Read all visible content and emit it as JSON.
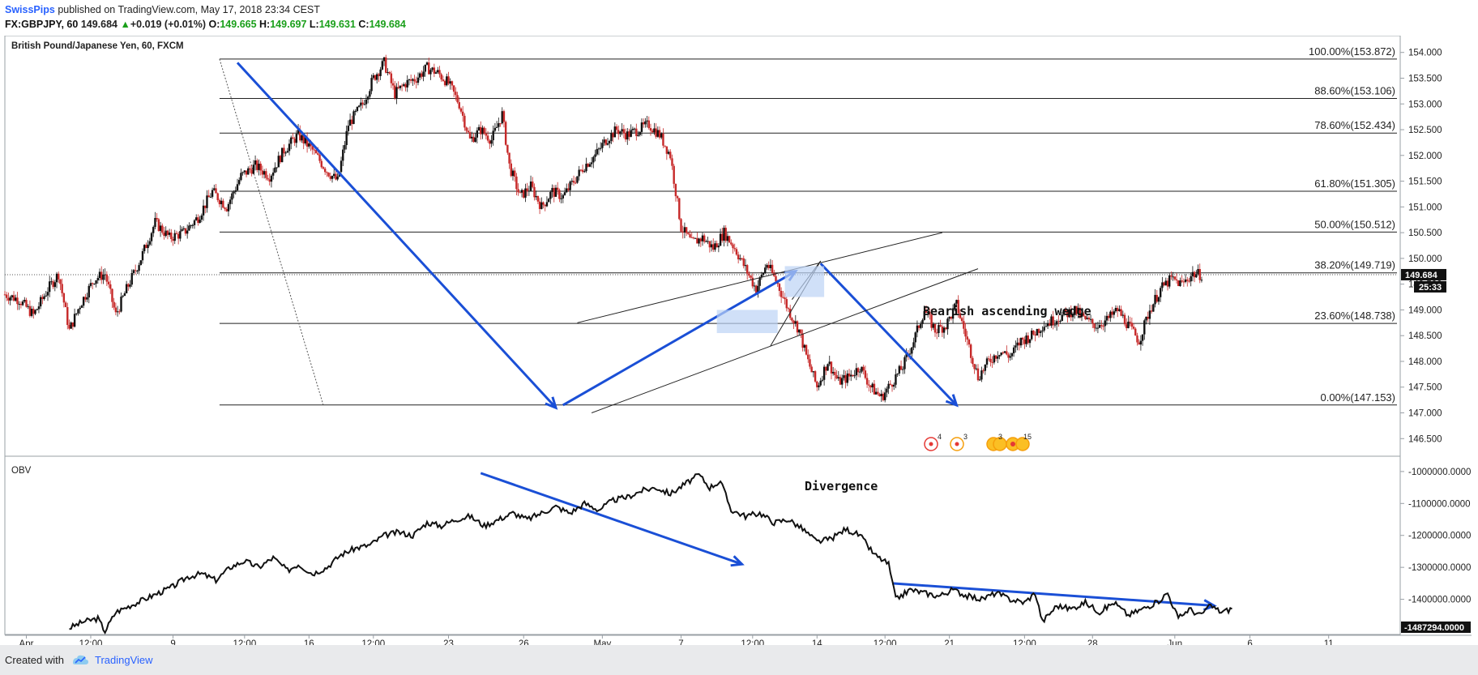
{
  "header": {
    "publisher": "SwissPips",
    "published_text": "published on TradingView.com, May 17, 2018 23:34 CEST",
    "symbol": "FX:GBPJPY, 60",
    "last": "149.684",
    "change": "+0.019 (+0.01%)",
    "o_label": "O:",
    "o_value": "149.665",
    "h_label": "H:",
    "h_value": "149.697",
    "l_label": "L:",
    "l_value": "149.631",
    "c_label": "C:",
    "c_value": "149.684"
  },
  "chart_data": [
    {
      "type": "candlestick",
      "title": "British Pound/Japanese Yen, 60, FXCM",
      "ylim": [
        146.3,
        154.2
      ],
      "y_ticks": [
        "154.000",
        "153.500",
        "153.000",
        "152.500",
        "152.000",
        "151.500",
        "151.000",
        "150.500",
        "150.000",
        "149.500",
        "149.000",
        "148.500",
        "148.000",
        "147.500",
        "147.000",
        "146.500"
      ],
      "y_tick_values": [
        154.0,
        153.5,
        153.0,
        152.5,
        152.0,
        151.5,
        151.0,
        150.5,
        150.0,
        149.5,
        149.0,
        148.5,
        148.0,
        147.5,
        147.0,
        146.5
      ],
      "last_price_label": "149.684",
      "last_price": 149.684,
      "countdown_label": "25:33",
      "fibonacci": [
        {
          "label": "100.00%(153.872)",
          "value": 153.872
        },
        {
          "label": "88.60%(153.106)",
          "value": 153.106
        },
        {
          "label": "78.60%(152.434)",
          "value": 152.434
        },
        {
          "label": "61.80%(151.305)",
          "value": 151.305
        },
        {
          "label": "50.00%(150.512)",
          "value": 150.512
        },
        {
          "label": "38.20%(149.719)",
          "value": 149.719
        },
        {
          "label": "23.60%(148.738)",
          "value": 148.738
        },
        {
          "label": "0.00%(147.153)",
          "value": 147.153
        }
      ],
      "price_path": [
        [
          0,
          149.3
        ],
        [
          4,
          149.2
        ],
        [
          8,
          148.9
        ],
        [
          12,
          149.4
        ],
        [
          15,
          149.7
        ],
        [
          18,
          148.6
        ],
        [
          21,
          149.1
        ],
        [
          25,
          149.6
        ],
        [
          28,
          149.7
        ],
        [
          31,
          148.9
        ],
        [
          34,
          149.4
        ],
        [
          38,
          150.0
        ],
        [
          42,
          150.7
        ],
        [
          46,
          150.4
        ],
        [
          50,
          150.5
        ],
        [
          54,
          150.8
        ],
        [
          58,
          151.3
        ],
        [
          62,
          151.0
        ],
        [
          66,
          151.6
        ],
        [
          70,
          151.8
        ],
        [
          74,
          151.6
        ],
        [
          78,
          152.1
        ],
        [
          82,
          152.4
        ],
        [
          86,
          152.1
        ],
        [
          90,
          151.7
        ],
        [
          93,
          151.5
        ],
        [
          96,
          152.6
        ],
        [
          100,
          153.0
        ],
        [
          103,
          153.5
        ],
        [
          106,
          153.8
        ],
        [
          109,
          153.2
        ],
        [
          112,
          153.4
        ],
        [
          115,
          153.5
        ],
        [
          118,
          153.7
        ],
        [
          121,
          153.6
        ],
        [
          124,
          153.4
        ],
        [
          127,
          153.0
        ],
        [
          130,
          152.3
        ],
        [
          133,
          152.5
        ],
        [
          136,
          152.3
        ],
        [
          139,
          152.8
        ],
        [
          141,
          151.8
        ],
        [
          144,
          151.2
        ],
        [
          147,
          151.4
        ],
        [
          150,
          151.0
        ],
        [
          153,
          151.3
        ],
        [
          156,
          151.2
        ],
        [
          159,
          151.5
        ],
        [
          162,
          151.8
        ],
        [
          165,
          152.0
        ],
        [
          168,
          152.3
        ],
        [
          171,
          152.5
        ],
        [
          174,
          152.4
        ],
        [
          177,
          152.5
        ],
        [
          180,
          152.6
        ],
        [
          183,
          152.4
        ],
        [
          186,
          152.0
        ],
        [
          189,
          150.6
        ],
        [
          192,
          150.3
        ],
        [
          195,
          150.4
        ],
        [
          198,
          150.2
        ],
        [
          201,
          150.5
        ],
        [
          204,
          150.2
        ],
        [
          207,
          149.8
        ],
        [
          210,
          149.4
        ],
        [
          213,
          149.9
        ],
        [
          216,
          149.5
        ],
        [
          219,
          149.0
        ],
        [
          222,
          148.6
        ],
        [
          224,
          148.1
        ],
        [
          227,
          147.5
        ],
        [
          230,
          148.0
        ],
        [
          233,
          147.6
        ],
        [
          236,
          147.7
        ],
        [
          239,
          147.9
        ],
        [
          242,
          147.5
        ],
        [
          245,
          147.3
        ],
        [
          248,
          147.6
        ],
        [
          251,
          147.9
        ],
        [
          254,
          148.4
        ],
        [
          257,
          149.0
        ],
        [
          260,
          148.6
        ],
        [
          263,
          148.7
        ],
        [
          266,
          149.1
        ],
        [
          269,
          148.4
        ],
        [
          272,
          147.7
        ],
        [
          275,
          148.0
        ],
        [
          278,
          148.2
        ],
        [
          281,
          148.1
        ],
        [
          284,
          148.4
        ],
        [
          287,
          148.5
        ],
        [
          290,
          148.7
        ],
        [
          293,
          148.8
        ],
        [
          296,
          148.9
        ],
        [
          299,
          149.0
        ],
        [
          302,
          148.8
        ],
        [
          305,
          148.7
        ],
        [
          308,
          148.8
        ],
        [
          311,
          149.0
        ],
        [
          314,
          148.7
        ],
        [
          317,
          148.4
        ],
        [
          320,
          149.0
        ],
        [
          323,
          149.4
        ],
        [
          326,
          149.6
        ],
        [
          329,
          149.5
        ],
        [
          332,
          149.7
        ],
        [
          335,
          149.68
        ]
      ],
      "x_ticks": [
        "Apr",
        "12:00",
        "9",
        "12:00",
        "16",
        "12:00",
        "23",
        "26",
        "May",
        "7",
        "12:00",
        "14",
        "12:00",
        "21",
        "12:00",
        "28",
        "Jun",
        "6",
        "11"
      ],
      "x_tick_index": [
        6,
        24,
        47,
        67,
        85,
        103,
        124,
        145,
        167,
        189,
        209,
        227,
        246,
        264,
        285,
        304,
        327,
        348,
        370
      ],
      "annotations": {
        "wedge_label": "Bearish ascending wedge"
      },
      "markers": [
        "4",
        "3",
        "3",
        "15"
      ]
    },
    {
      "type": "line",
      "title": "OBV",
      "ylim": [
        -1500000,
        -980000
      ],
      "y_ticks": [
        "-1000000.0000",
        "-1100000.0000",
        "-1200000.0000",
        "-1300000.0000",
        "-1400000.0000"
      ],
      "y_tick_values": [
        -1000000,
        -1100000,
        -1200000,
        -1300000,
        -1400000
      ],
      "last_value_label": "-1487294.0000",
      "last_value": -1487294,
      "series": [
        {
          "values": [
            [
              18,
              -1490000
            ],
            [
              22,
              -1470000
            ],
            [
              26,
              -1460000
            ],
            [
              28,
              -1500000
            ],
            [
              31,
              -1440000
            ],
            [
              35,
              -1420000
            ],
            [
              39,
              -1400000
            ],
            [
              43,
              -1380000
            ],
            [
              47,
              -1360000
            ],
            [
              51,
              -1330000
            ],
            [
              55,
              -1320000
            ],
            [
              59,
              -1340000
            ],
            [
              63,
              -1300000
            ],
            [
              67,
              -1280000
            ],
            [
              71,
              -1300000
            ],
            [
              75,
              -1270000
            ],
            [
              79,
              -1310000
            ],
            [
              82,
              -1290000
            ],
            [
              86,
              -1320000
            ],
            [
              90,
              -1300000
            ],
            [
              94,
              -1260000
            ],
            [
              98,
              -1240000
            ],
            [
              102,
              -1230000
            ],
            [
              106,
              -1200000
            ],
            [
              110,
              -1190000
            ],
            [
              114,
              -1200000
            ],
            [
              118,
              -1160000
            ],
            [
              122,
              -1170000
            ],
            [
              126,
              -1150000
            ],
            [
              130,
              -1140000
            ],
            [
              134,
              -1170000
            ],
            [
              138,
              -1150000
            ],
            [
              142,
              -1130000
            ],
            [
              146,
              -1150000
            ],
            [
              150,
              -1130000
            ],
            [
              154,
              -1110000
            ],
            [
              158,
              -1130000
            ],
            [
              162,
              -1100000
            ],
            [
              166,
              -1120000
            ],
            [
              170,
              -1090000
            ],
            [
              174,
              -1080000
            ],
            [
              178,
              -1060000
            ],
            [
              182,
              -1050000
            ],
            [
              186,
              -1070000
            ],
            [
              190,
              -1040000
            ],
            [
              194,
              -1010000
            ],
            [
              197,
              -1050000
            ],
            [
              200,
              -1030000
            ],
            [
              203,
              -1120000
            ],
            [
              207,
              -1140000
            ],
            [
              211,
              -1130000
            ],
            [
              215,
              -1160000
            ],
            [
              219,
              -1150000
            ],
            [
              223,
              -1180000
            ],
            [
              227,
              -1220000
            ],
            [
              231,
              -1210000
            ],
            [
              235,
              -1180000
            ],
            [
              239,
              -1200000
            ],
            [
              243,
              -1260000
            ],
            [
              247,
              -1290000
            ],
            [
              249,
              -1400000
            ],
            [
              253,
              -1370000
            ],
            [
              257,
              -1380000
            ],
            [
              261,
              -1390000
            ],
            [
              265,
              -1370000
            ],
            [
              269,
              -1390000
            ],
            [
              273,
              -1400000
            ],
            [
              277,
              -1380000
            ],
            [
              281,
              -1400000
            ],
            [
              285,
              -1410000
            ],
            [
              288,
              -1380000
            ],
            [
              290,
              -1470000
            ],
            [
              294,
              -1420000
            ],
            [
              298,
              -1430000
            ],
            [
              302,
              -1410000
            ],
            [
              306,
              -1440000
            ],
            [
              310,
              -1410000
            ],
            [
              314,
              -1450000
            ],
            [
              318,
              -1430000
            ],
            [
              322,
              -1410000
            ],
            [
              325,
              -1380000
            ],
            [
              328,
              -1460000
            ],
            [
              331,
              -1430000
            ],
            [
              334,
              -1450000
            ],
            [
              337,
              -1420000
            ],
            [
              340,
              -1440000
            ],
            [
              343,
              -1430000
            ]
          ]
        }
      ],
      "annotations": {
        "divergence_label": "Divergence"
      }
    }
  ],
  "footer": {
    "created_with": "Created with",
    "brand": "TradingView"
  }
}
